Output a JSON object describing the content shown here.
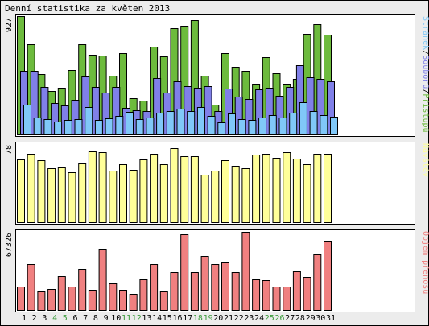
{
  "title": "Denní statistika za květen 2013",
  "colors": {
    "background": "#ececec",
    "panel_background": "#ffffff",
    "border": "#000000",
    "accesses": "#6dbb3d",
    "files": "#8080e8",
    "pages": "#80c8f8",
    "visits": "#ffff99",
    "volume": "#f08080",
    "weekday_label": "#000000",
    "weekend_label": "#3a9b3a"
  },
  "chart_data": [
    {
      "type": "bar",
      "panel": "top",
      "max_label": "927",
      "categories": [
        "1",
        "2",
        "3",
        "4",
        "5",
        "6",
        "7",
        "8",
        "9",
        "10",
        "11",
        "12",
        "13",
        "14",
        "15",
        "16",
        "17",
        "18",
        "19",
        "20",
        "21",
        "22",
        "23",
        "24",
        "25",
        "26",
        "27",
        "28",
        "29",
        "30",
        "31"
      ],
      "weekend_days": [
        "4",
        "5",
        "11",
        "12",
        "18",
        "19",
        "25",
        "26"
      ],
      "legend": [
        {
          "text": "Stránek",
          "color_key": "pages"
        },
        {
          "text": "/",
          "color_key": "border"
        },
        {
          "text": "Souborů",
          "color_key": "files"
        },
        {
          "text": "/",
          "color_key": "border"
        },
        {
          "text": "Přístupů",
          "color_key": "accesses"
        }
      ],
      "series": [
        {
          "name": "Přístupů",
          "color_key": "accesses",
          "values": [
            927,
            705,
            470,
            340,
            365,
            505,
            705,
            625,
            615,
            460,
            635,
            285,
            265,
            690,
            610,
            835,
            850,
            895,
            460,
            235,
            635,
            530,
            500,
            400,
            605,
            480,
            400,
            435,
            790,
            865,
            785
          ]
        },
        {
          "name": "Souborů",
          "color_key": "files",
          "values": [
            500,
            500,
            375,
            245,
            225,
            270,
            455,
            375,
            325,
            375,
            205,
            190,
            185,
            440,
            330,
            415,
            380,
            365,
            380,
            185,
            360,
            295,
            280,
            355,
            365,
            300,
            370,
            545,
            445,
            435,
            415
          ]
        },
        {
          "name": "Stránek",
          "color_key": "pages",
          "values": [
            235,
            130,
            120,
            100,
            115,
            120,
            215,
            115,
            125,
            145,
            175,
            120,
            130,
            170,
            185,
            200,
            185,
            215,
            145,
            95,
            165,
            120,
            115,
            130,
            150,
            130,
            170,
            255,
            180,
            150,
            140
          ]
        }
      ],
      "ylim": [
        0,
        927
      ]
    },
    {
      "type": "bar",
      "panel": "middle",
      "max_label": "78",
      "legend": [
        {
          "text": "Návštěv",
          "color_key": "visits"
        }
      ],
      "series": [
        {
          "name": "Návštěv",
          "color_key": "visits",
          "values": [
            62,
            68,
            61,
            53,
            54,
            49,
            58,
            70,
            69,
            51,
            57,
            52,
            62,
            68,
            57,
            73,
            65,
            65,
            47,
            51,
            61,
            56,
            53,
            67,
            68,
            64,
            69,
            63,
            57,
            68,
            68
          ]
        }
      ],
      "ylim": [
        0,
        78
      ]
    },
    {
      "type": "bar",
      "panel": "bottom",
      "max_label": "67326",
      "legend": [
        {
          "text": "Objem přenosu",
          "color_key": "volume"
        }
      ],
      "series": [
        {
          "name": "Objem přenosu",
          "color_key": "volume",
          "values": [
            20000,
            39000,
            15900,
            18100,
            28800,
            19700,
            34800,
            17500,
            52400,
            22800,
            16900,
            13600,
            26300,
            39100,
            16100,
            32300,
            64300,
            32600,
            45700,
            39300,
            40600,
            32000,
            66300,
            26100,
            25700,
            19900,
            19600,
            32800,
            28500,
            47500,
            58200
          ]
        }
      ],
      "ylim": [
        0,
        67326
      ]
    }
  ]
}
